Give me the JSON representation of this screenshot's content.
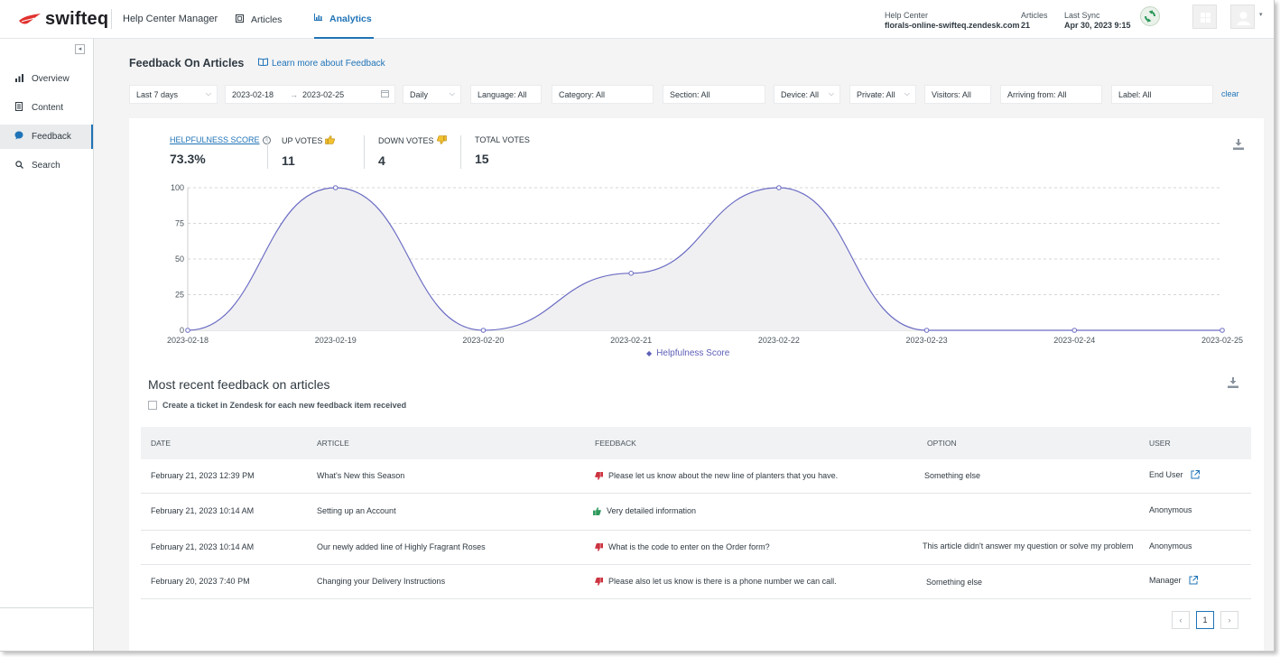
{
  "header": {
    "logo_text": "swifteq",
    "app_name": "Help Center Manager",
    "tabs": [
      {
        "label": "Articles",
        "icon": "article-icon"
      },
      {
        "label": "Analytics",
        "icon": "chart-icon"
      }
    ],
    "help_center": {
      "label": "Help Center",
      "value": "florals-online-swifteq.zendesk.com"
    },
    "articles": {
      "label": "Articles",
      "value": "21"
    },
    "last_sync": {
      "label": "Last Sync",
      "value": "Apr 30, 2023 9:15"
    }
  },
  "sidebar": {
    "items": [
      {
        "label": "Overview",
        "icon": "bar-chart-icon"
      },
      {
        "label": "Content",
        "icon": "document-icon"
      },
      {
        "label": "Feedback",
        "icon": "chat-bubble-icon"
      },
      {
        "label": "Search",
        "icon": "search-icon"
      }
    ],
    "active_index": 2
  },
  "page": {
    "title": "Feedback On Articles",
    "learn_link": "Learn more about Feedback"
  },
  "filters": {
    "period": "Last 7 days",
    "date_from": "2023-02-18",
    "date_to": "2023-02-25",
    "granularity": "Daily",
    "language": "Language: All",
    "category": "Category: All",
    "section": "Section: All",
    "device": "Device: All",
    "private": "Private: All",
    "visitors": "Visitors: All",
    "arriving_from": "Arriving from: All",
    "label": "Label: All",
    "clear": "clear"
  },
  "stats": {
    "helpfulness": {
      "label": "HELPFULNESS SCORE",
      "value": "73.3%"
    },
    "up_votes": {
      "label": "UP VOTES",
      "value": "11"
    },
    "down_votes": {
      "label": "DOWN VOTES",
      "value": "4"
    },
    "total_votes": {
      "label": "TOTAL VOTES",
      "value": "15"
    }
  },
  "chart_data": {
    "type": "area",
    "x": [
      "2023-02-18",
      "2023-02-19",
      "2023-02-20",
      "2023-02-21",
      "2023-02-22",
      "2023-02-23",
      "2023-02-24",
      "2023-02-25"
    ],
    "series": [
      {
        "name": "Helpfulness Score",
        "values": [
          0,
          100,
          0,
          40,
          100,
          0,
          0,
          0
        ]
      }
    ],
    "yticks": [
      0,
      25,
      50,
      75,
      100
    ],
    "ylim": [
      0,
      100
    ],
    "grid": true,
    "legend_position": "bottom-center",
    "line_color": "#6b6cc4",
    "fill_color": "#f0f0f2"
  },
  "feedback_section": {
    "title": "Most recent feedback on articles",
    "checkbox_label": "Create a ticket in Zendesk for each new feedback item received",
    "columns": [
      "DATE",
      "ARTICLE",
      "FEEDBACK",
      "OPTION",
      "USER"
    ],
    "rows": [
      {
        "date": "February 21, 2023 12:39 PM",
        "article": "What's New this Season",
        "vote": "down",
        "feedback": "Please let us know about the new line of planters that you have.",
        "option": "Something else",
        "user": "End User",
        "has_link": true
      },
      {
        "date": "February 21, 2023 10:14 AM",
        "article": "Setting up an Account",
        "vote": "up",
        "feedback": "Very detailed information",
        "option": "",
        "user": "Anonymous",
        "has_link": false
      },
      {
        "date": "February 21, 2023 10:14 AM",
        "article": "Our newly added line of Highly Fragrant Roses",
        "vote": "down",
        "feedback": "What is the code to enter on the Order form?",
        "option": "This article didn't answer my question or solve my problem",
        "user": "Anonymous",
        "has_link": false
      },
      {
        "date": "February 20, 2023 7:40 PM",
        "article": "Changing your Delivery Instructions",
        "vote": "down",
        "feedback": "Please also let us know is there is a phone number we can call.",
        "option": "Something else",
        "user": "Manager",
        "has_link": true
      }
    ]
  },
  "pagination": {
    "prev": "‹",
    "current": "1",
    "next": "›"
  },
  "colors": {
    "accent": "#1f73b7",
    "down_vote": "#cc3340",
    "up_vote": "#2e9a5c",
    "chart_line": "#6b6cc4"
  }
}
